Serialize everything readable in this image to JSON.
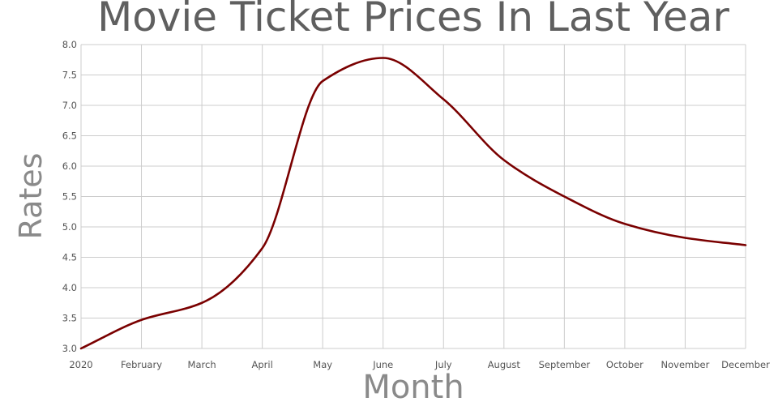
{
  "chart_data": {
    "type": "line",
    "title": "Movie Ticket Prices In Last Year",
    "xlabel": "Month",
    "ylabel": "Rates",
    "categories": [
      "2020",
      "February",
      "March",
      "April",
      "May",
      "June",
      "July",
      "August",
      "September",
      "October",
      "November",
      "December"
    ],
    "series": [
      {
        "values": [
          3.0,
          3.47,
          3.75,
          4.65,
          7.4,
          7.78,
          7.1,
          6.1,
          5.5,
          5.05,
          4.82,
          4.7
        ]
      }
    ],
    "ylim": [
      3.0,
      8.0
    ],
    "yticks": [
      "3.0",
      "3.5",
      "4.0",
      "4.5",
      "5.0",
      "5.5",
      "6.0",
      "6.5",
      "7.0",
      "7.5",
      "8.0"
    ],
    "grid": true,
    "line_color": "#7a0000"
  }
}
